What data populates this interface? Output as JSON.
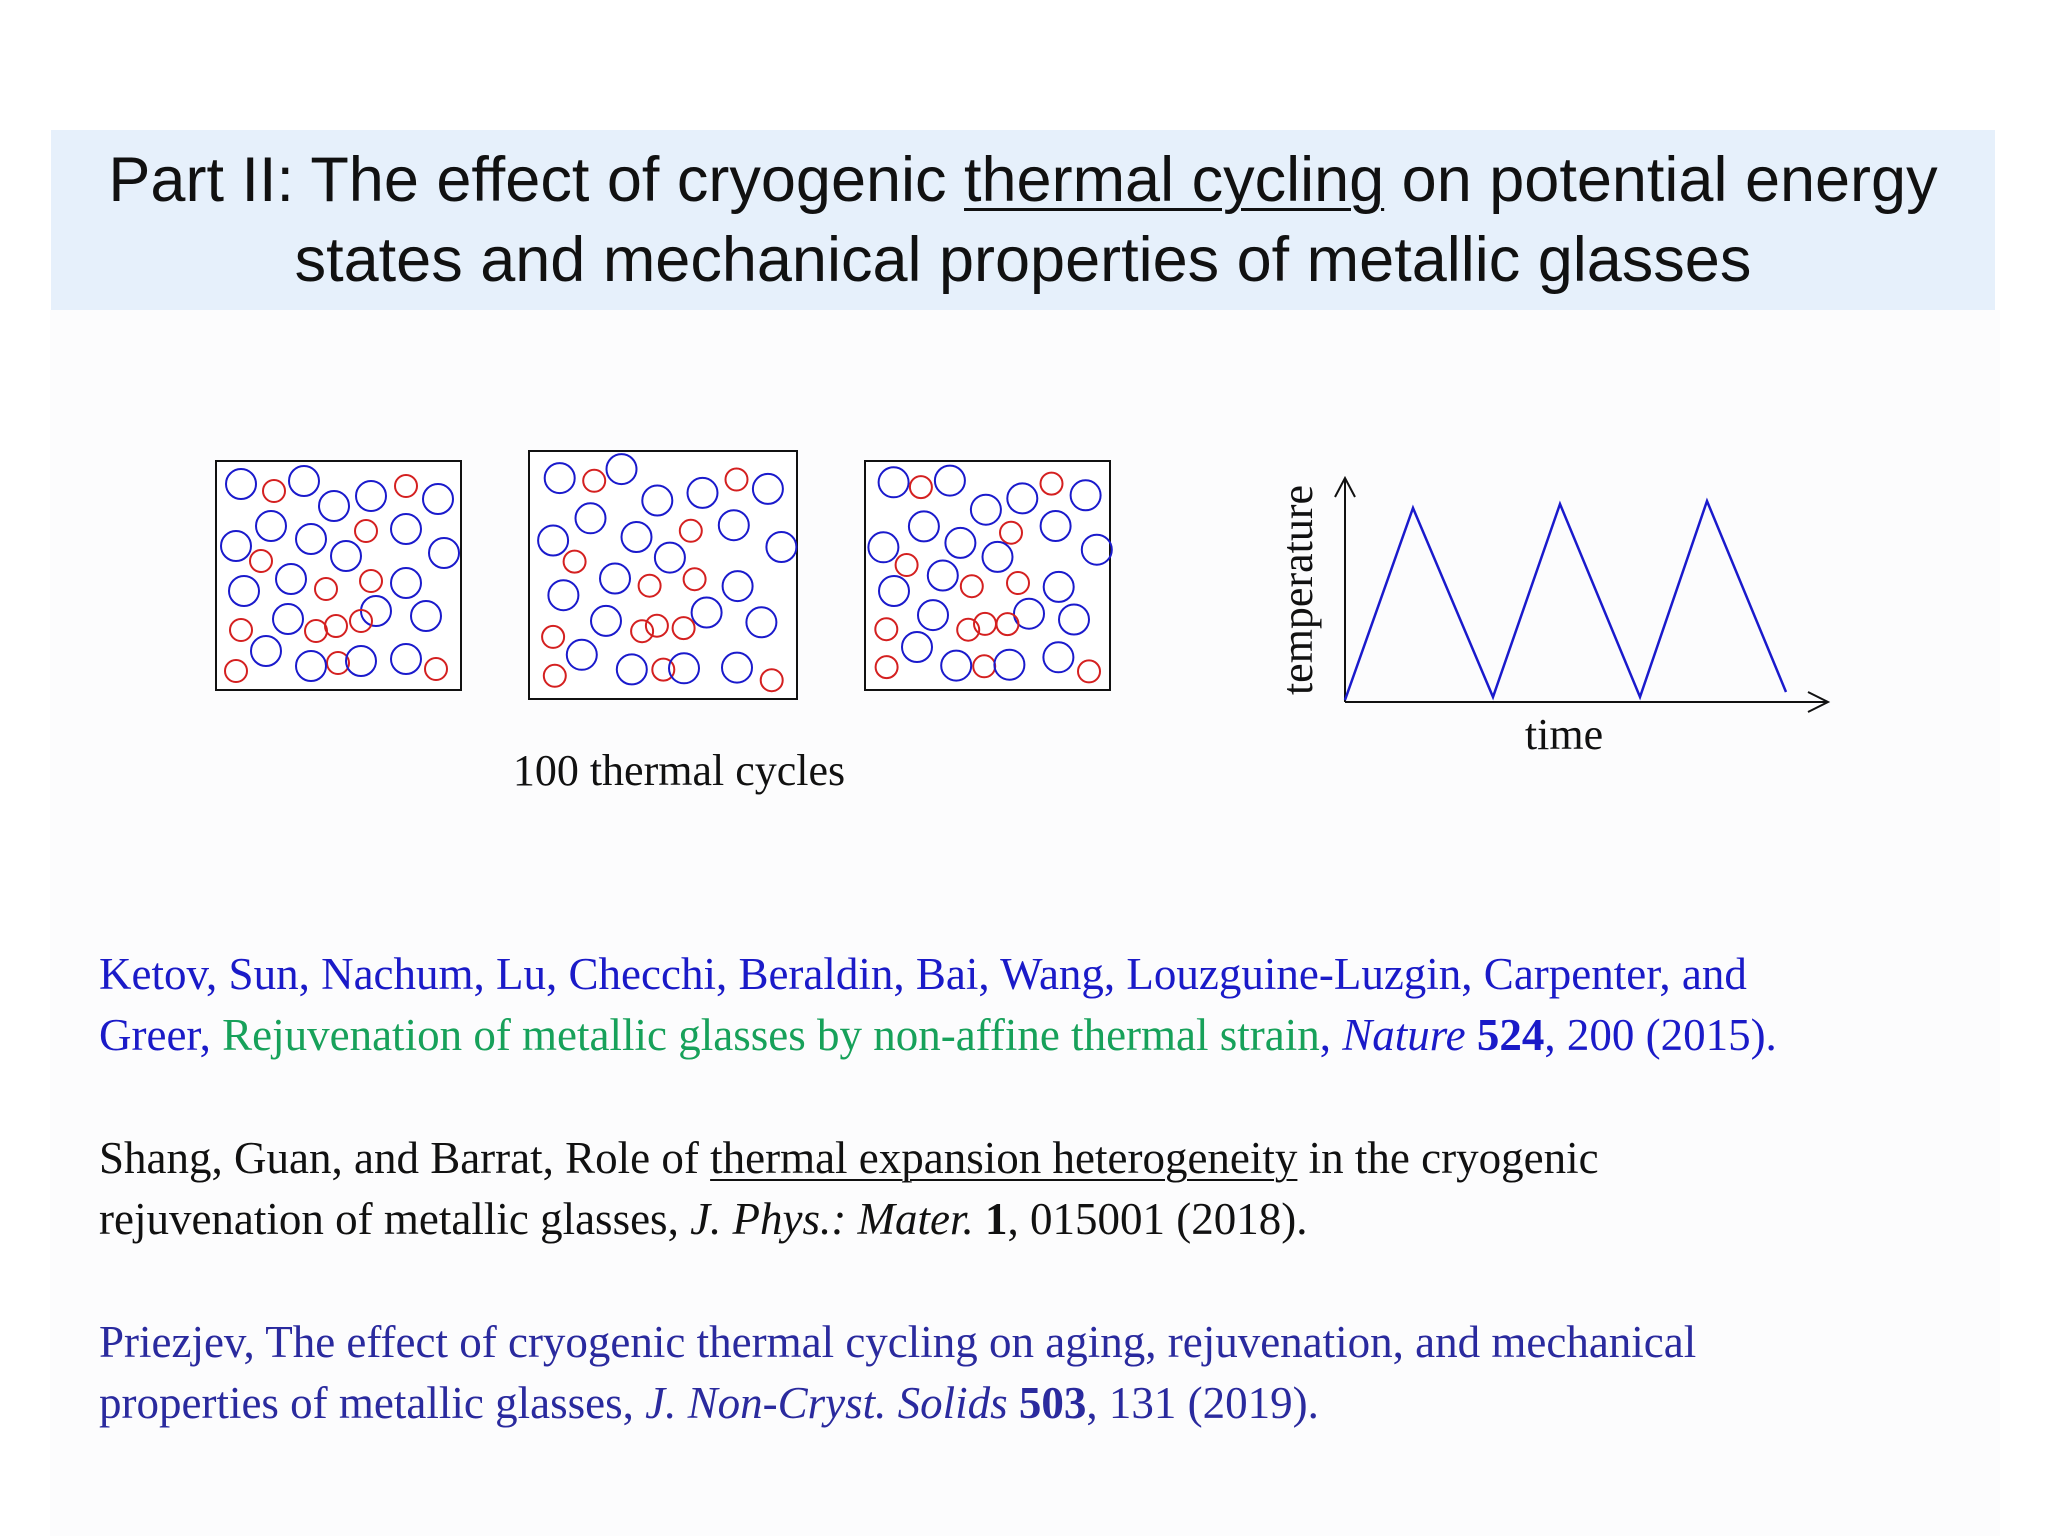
{
  "slide": {
    "title": {
      "line1_before": "Part II: The effect of cryogenic ",
      "line1_underlined": "thermal cycling",
      "line1_after": " on potential energy",
      "line2": "states and mechanical properties of metallic glasses"
    },
    "colors": {
      "title_bg": "#e6f0fb",
      "blue_particle": "#1a1acc",
      "red_particle": "#d42020",
      "graph_line": "#1a1acc",
      "ref1_authors": "#1a1ac8",
      "ref1_title": "#17a15a",
      "ref3": "#2a2a9e"
    }
  },
  "figure": {
    "caption": "100 thermal cycles",
    "graph": {
      "ylabel": "temperature",
      "xlabel": "time",
      "peaks": 3,
      "waveform": "triangle"
    }
  },
  "references": [
    {
      "authors": "Ketov, Sun, Nachum, Lu, Checchi, Beraldin, Bai, Wang, Louzguine-Luzgin, Carpenter, and",
      "authors_cont": "Greer,",
      "title": "Rejuvenation of metallic glasses by non-affine thermal strain",
      "sep": ",",
      "journal": "Nature",
      "volume": "524",
      "rest": ", 200 (2015)."
    },
    {
      "line1_before": "Shang, Guan, and Barrat, Role of ",
      "line1_underlined": "thermal expansion heterogeneity",
      "line1_after": " in the cryogenic",
      "line2_before": "rejuvenation of metallic glasses, ",
      "journal": "J. Phys.: Mater.",
      "volume": "1",
      "rest": ", 015001 (2018)."
    },
    {
      "line1": "Priezjev, The effect of cryogenic thermal cycling on aging, rejuvenation, and mechanical",
      "line2_before": "properties of metallic glasses, ",
      "journal": "J. Non-Cryst. Solids",
      "volume": "503",
      "rest": ", 131 (2019)."
    }
  ]
}
